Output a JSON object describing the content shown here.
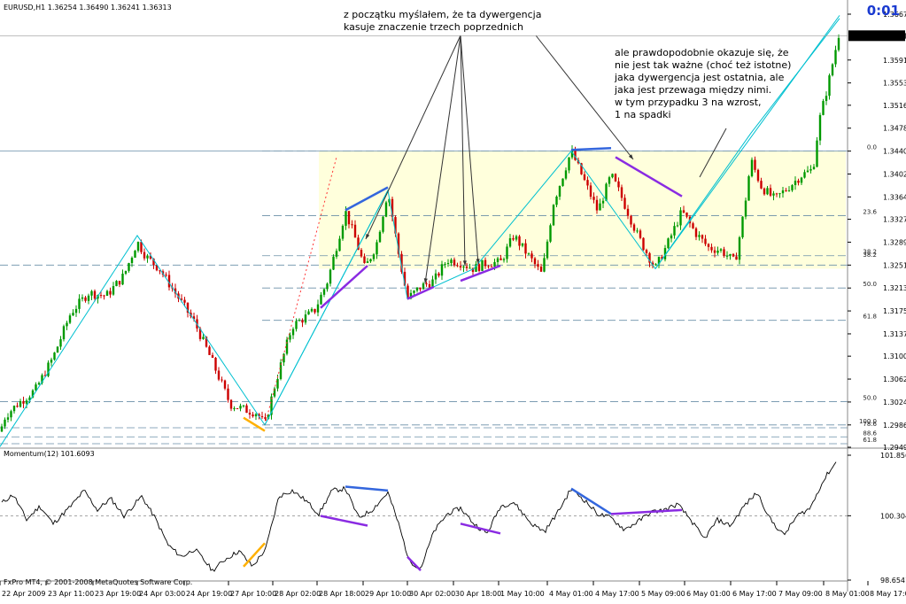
{
  "symbol_header": "EURUSD,H1  1.36254 1.36490 1.36241 1.36313",
  "timer": "0:01",
  "indicator_header": "Momentum(12) 101.6093",
  "copyright": "FxPro MT4, © 2001-2008 MetaQuotes Software Corp.",
  "annotations": {
    "top_left": [
      "z początku myślałem, że ta dywergencja",
      "kasuje znaczenie trzech poprzednich"
    ],
    "right": [
      "ale prawdopodobnie okazuje się, że",
      "nie jest tak ważne (choć też istotne)",
      "jaka dywergencja jest ostatnia, ale",
      "jaka jest przewaga między nimi.",
      "w tym przypadku 3 na wzrost,",
      "1 na spadki"
    ]
  },
  "price_axis": [
    "1.36670",
    "1.36313",
    "1.35910",
    "1.35530",
    "1.35160",
    "1.34780",
    "1.34400",
    "1.34020",
    "1.33640",
    "1.33270",
    "1.32890",
    "1.32510",
    "1.32130",
    "1.31750",
    "1.31370",
    "1.31000",
    "1.30620",
    "1.30240",
    "1.29860",
    "1.29490"
  ],
  "current_price": "1.36313",
  "indicator_axis": [
    "101.8560",
    "100.3040",
    "98.6541"
  ],
  "time_axis": [
    "22 Apr 2009",
    "23 Apr 11:00",
    "23 Apr 19:00",
    "24 Apr 03:00",
    "24 Apr 19:00",
    "27 Apr 10:00",
    "28 Apr 02:00",
    "28 Apr 18:00",
    "29 Apr 10:00",
    "30 Apr 02:00",
    "30 Apr 18:00",
    "1 May 10:00",
    "4 May 01:00",
    "4 May 17:00",
    "5 May 09:00",
    "6 May 01:00",
    "6 May 17:00",
    "7 May 09:00",
    "8 May 01:00",
    "8 May 17:00"
  ],
  "fib_levels": [
    "0.0",
    "23.6",
    "38.2",
    "50.0",
    "61.8",
    "100.0",
    "50.0",
    "78.6",
    "88.6",
    "61.8",
    "38.2"
  ],
  "colors": {
    "bull": "#009900",
    "bear": "#cc0000",
    "zigzag": "#00c0d0",
    "divergence_blue": "#3366dd",
    "divergence_purple": "#8a2be2",
    "divergence_orange": "#ffb000",
    "fib_zone": "#ffffdc",
    "timer": "#1a3ad0"
  },
  "chart_data": {
    "type": "candlestick",
    "symbol": "EURUSD",
    "timeframe": "H1",
    "ylim": [
      1.2949,
      1.3667
    ],
    "momentum_ylim": [
      98.6541,
      101.856
    ],
    "momentum_mid": 100.304,
    "price_path": [
      [
        0,
        1.2975
      ],
      [
        6,
        1.3001
      ],
      [
        20,
        1.3021
      ],
      [
        40,
        1.3044
      ],
      [
        60,
        1.3098
      ],
      [
        80,
        1.3172
      ],
      [
        100,
        1.3205
      ],
      [
        120,
        1.32
      ],
      [
        140,
        1.3234
      ],
      [
        155,
        1.329
      ],
      [
        165,
        1.3265
      ],
      [
        180,
        1.3245
      ],
      [
        200,
        1.32
      ],
      [
        220,
        1.3155
      ],
      [
        240,
        1.309
      ],
      [
        260,
        1.302
      ],
      [
        275,
        1.3012
      ],
      [
        290,
        1.3006
      ],
      [
        299,
        1.2986
      ],
      [
        310,
        1.305
      ],
      [
        330,
        1.315
      ],
      [
        355,
        1.3175
      ],
      [
        370,
        1.3225
      ],
      [
        390,
        1.334
      ],
      [
        400,
        1.33
      ],
      [
        412,
        1.3245
      ],
      [
        425,
        1.3285
      ],
      [
        438,
        1.3375
      ],
      [
        450,
        1.327
      ],
      [
        460,
        1.3195
      ],
      [
        475,
        1.3215
      ],
      [
        490,
        1.3225
      ],
      [
        505,
        1.326
      ],
      [
        520,
        1.3255
      ],
      [
        535,
        1.3245
      ],
      [
        550,
        1.3255
      ],
      [
        565,
        1.3255
      ],
      [
        580,
        1.33
      ],
      [
        600,
        1.326
      ],
      [
        612,
        1.3235
      ],
      [
        625,
        1.3355
      ],
      [
        645,
        1.344
      ],
      [
        660,
        1.339
      ],
      [
        675,
        1.334
      ],
      [
        690,
        1.34
      ],
      [
        700,
        1.337
      ],
      [
        720,
        1.33
      ],
      [
        740,
        1.3245
      ],
      [
        755,
        1.329
      ],
      [
        770,
        1.334
      ],
      [
        785,
        1.3305
      ],
      [
        800,
        1.328
      ],
      [
        815,
        1.3275
      ],
      [
        830,
        1.3255
      ],
      [
        840,
        1.334
      ],
      [
        848,
        1.3425
      ],
      [
        860,
        1.338
      ],
      [
        875,
        1.336
      ],
      [
        890,
        1.338
      ],
      [
        905,
        1.34
      ],
      [
        918,
        1.341
      ],
      [
        925,
        1.349
      ],
      [
        935,
        1.355
      ],
      [
        948,
        1.364
      ]
    ],
    "momentum_path": [
      [
        0,
        100.6
      ],
      [
        15,
        100.85
      ],
      [
        30,
        100.2
      ],
      [
        45,
        100.55
      ],
      [
        60,
        100.1
      ],
      [
        80,
        100.55
      ],
      [
        95,
        100.95
      ],
      [
        110,
        100.45
      ],
      [
        125,
        100.75
      ],
      [
        140,
        100.3
      ],
      [
        160,
        100.8
      ],
      [
        175,
        100.25
      ],
      [
        190,
        99.55
      ],
      [
        205,
        99.25
      ],
      [
        220,
        99.45
      ],
      [
        240,
        98.9
      ],
      [
        255,
        99.2
      ],
      [
        270,
        99.4
      ],
      [
        285,
        99.0
      ],
      [
        300,
        99.45
      ],
      [
        315,
        100.8
      ],
      [
        330,
        100.95
      ],
      [
        345,
        100.7
      ],
      [
        360,
        100.35
      ],
      [
        375,
        100.95
      ],
      [
        390,
        101.0
      ],
      [
        405,
        100.25
      ],
      [
        420,
        100.45
      ],
      [
        438,
        100.9
      ],
      [
        450,
        100.1
      ],
      [
        462,
        99.15
      ],
      [
        475,
        98.95
      ],
      [
        490,
        99.9
      ],
      [
        505,
        100.35
      ],
      [
        520,
        100.5
      ],
      [
        535,
        100.1
      ],
      [
        550,
        99.85
      ],
      [
        565,
        100.55
      ],
      [
        580,
        100.65
      ],
      [
        600,
        100.1
      ],
      [
        615,
        99.9
      ],
      [
        630,
        100.4
      ],
      [
        645,
        101.0
      ],
      [
        660,
        100.7
      ],
      [
        675,
        100.35
      ],
      [
        690,
        100.25
      ],
      [
        705,
        99.95
      ],
      [
        720,
        100.15
      ],
      [
        735,
        100.4
      ],
      [
        750,
        100.45
      ],
      [
        765,
        100.6
      ],
      [
        780,
        100.2
      ],
      [
        795,
        99.7
      ],
      [
        810,
        100.2
      ],
      [
        825,
        100.05
      ],
      [
        840,
        100.55
      ],
      [
        855,
        100.9
      ],
      [
        870,
        100.2
      ],
      [
        885,
        99.8
      ],
      [
        900,
        100.3
      ],
      [
        915,
        100.5
      ],
      [
        925,
        101.0
      ],
      [
        935,
        101.4
      ],
      [
        945,
        101.7
      ]
    ],
    "fib_ranges": {
      "left": {
        "low": 1.2986,
        "high": 1.344
      },
      "right": {
        "low": 1.2949,
        "high": 1.31
      }
    },
    "fib_zone_box": {
      "x_from": 360,
      "x_to": 955,
      "low": 1.3245,
      "high": 1.344
    },
    "zigzag": [
      [
        0,
        1.295
      ],
      [
        155,
        1.33
      ],
      [
        299,
        1.2986
      ],
      [
        438,
        1.3375
      ],
      [
        460,
        1.3195
      ],
      [
        535,
        1.3245
      ],
      [
        645,
        1.344
      ],
      [
        740,
        1.3245
      ],
      [
        848,
        1.347
      ],
      [
        948,
        1.366
      ]
    ],
    "divergence_price": [
      {
        "color": "orange",
        "from": [
          275,
          1.2998
        ],
        "to": [
          299,
          1.2976
        ]
      },
      {
        "color": "blue",
        "from": [
          390,
          1.3342
        ],
        "to": [
          438,
          1.338
        ]
      },
      {
        "color": "purple",
        "from": [
          362,
          1.318
        ],
        "to": [
          415,
          1.325
        ]
      },
      {
        "color": "purple",
        "from": [
          460,
          1.3195
        ],
        "to": [
          490,
          1.3215
        ]
      },
      {
        "color": "purple",
        "from": [
          520,
          1.3225
        ],
        "to": [
          565,
          1.325
        ]
      },
      {
        "color": "blue",
        "from": [
          645,
          1.3442
        ],
        "to": [
          690,
          1.3445
        ]
      },
      {
        "color": "purple",
        "from": [
          695,
          1.343
        ],
        "to": [
          770,
          1.3365
        ]
      }
    ],
    "divergence_momentum": [
      {
        "color": "orange",
        "from": [
          275,
          99.0
        ],
        "to": [
          299,
          99.6
        ]
      },
      {
        "color": "blue",
        "from": [
          390,
          101.05
        ],
        "to": [
          438,
          100.95
        ]
      },
      {
        "color": "purple",
        "from": [
          362,
          100.3
        ],
        "to": [
          415,
          100.05
        ]
      },
      {
        "color": "purple",
        "from": [
          460,
          99.25
        ],
        "to": [
          475,
          98.9
        ]
      },
      {
        "color": "purple",
        "from": [
          520,
          100.1
        ],
        "to": [
          565,
          99.85
        ]
      },
      {
        "color": "blue",
        "from": [
          645,
          101.0
        ],
        "to": [
          690,
          100.35
        ]
      },
      {
        "color": "purple",
        "from": [
          690,
          100.35
        ],
        "to": [
          770,
          100.45
        ]
      }
    ]
  }
}
